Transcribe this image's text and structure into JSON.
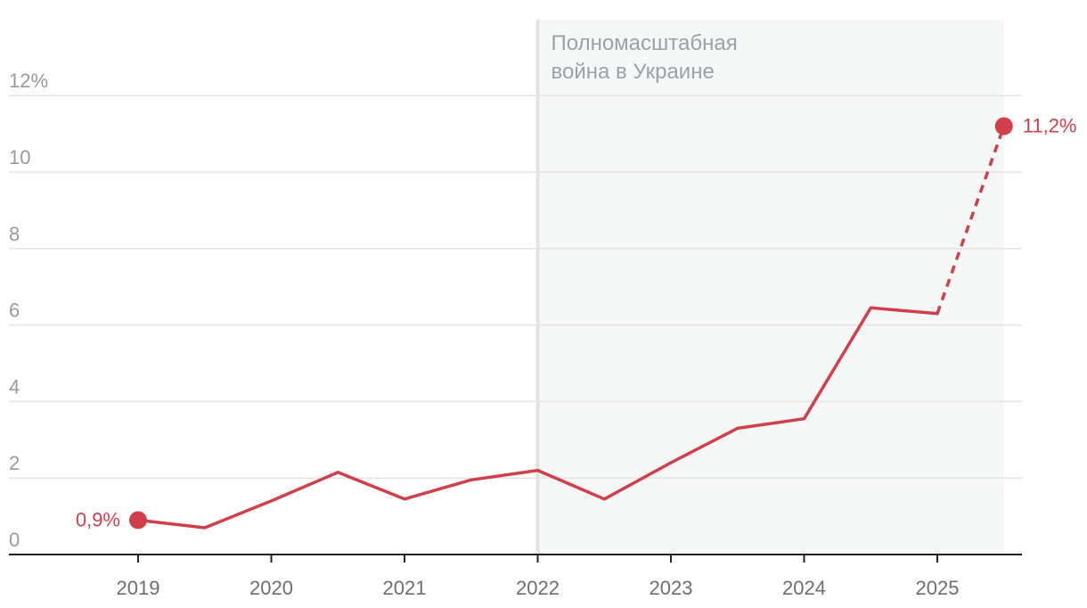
{
  "chart_data": {
    "type": "line",
    "x": [
      2019.0,
      2019.5,
      2020.0,
      2020.5,
      2021.0,
      2021.5,
      2022.0,
      2022.5,
      2023.0,
      2023.5,
      2024.0,
      2024.5,
      2025.0,
      2025.5
    ],
    "series": [
      {
        "values": [
          0.9,
          0.7,
          1.4,
          2.15,
          1.45,
          1.95,
          2.2,
          1.45,
          2.4,
          3.3,
          3.55,
          6.45,
          6.3,
          11.2
        ],
        "color": "#d1404a",
        "dashed_segment_from_x": 2025.0
      }
    ],
    "x_ticks": [
      "2019",
      "2020",
      "2021",
      "2022",
      "2023",
      "2024",
      "2025"
    ],
    "x_tick_values": [
      2019,
      2020,
      2021,
      2022,
      2023,
      2024,
      2025
    ],
    "y_ticks": [
      "0",
      "2",
      "4",
      "6",
      "8",
      "10",
      "12%"
    ],
    "y_tick_values": [
      0,
      2,
      4,
      6,
      8,
      10,
      12
    ],
    "ylim": [
      0,
      12.5
    ],
    "xlim": [
      2018.05,
      2026.0
    ],
    "grid": true,
    "highlight_region": {
      "from": 2022.0,
      "to": 2025.5,
      "color": "#f6f8f7",
      "line_color": "#e2e2e2"
    },
    "annotation": [
      "Полномасштабная",
      "война в Украине"
    ],
    "start_label": "0,9%",
    "end_label": "11,2%",
    "title": "",
    "xlabel": "",
    "ylabel": ""
  }
}
